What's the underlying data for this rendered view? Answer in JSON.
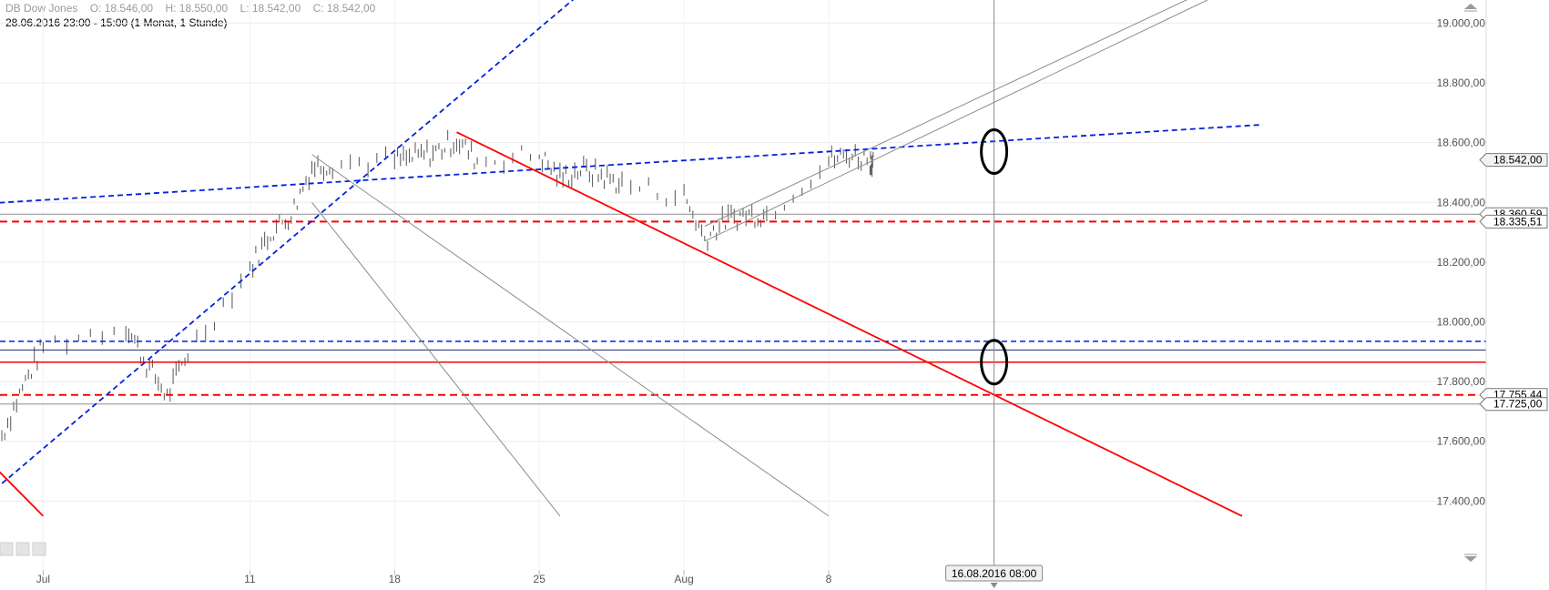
{
  "header": {
    "instrument": "DB Dow Jones",
    "open": "O: 18.546,00",
    "high": "H: 18.550,00",
    "low": "L: 18.542,00",
    "close": "C: 18.542,00",
    "range": "28.06.2016 23:00 - 15:00 (1 Monat, 1 Stunde)"
  },
  "crosshair_label": "16.08.2016 08:00",
  "colors": {
    "red": "#ff0000",
    "blue": "#0022dd",
    "grey": "#8c8c8c",
    "candle": "#555555"
  },
  "chart_data": {
    "type": "line",
    "title": "DB Dow Jones",
    "xlabel": "",
    "ylabel": "",
    "x_ticks": [
      "Jul",
      "11",
      "18",
      "25",
      "Aug",
      "8"
    ],
    "y_ticks": [
      "19.000,00",
      "18.800,00",
      "18.600,00",
      "18.400,00",
      "18.200,00",
      "18.000,00",
      "17.800,00",
      "17.600,00",
      "17.400,00"
    ],
    "ylim": [
      17350,
      19100
    ],
    "grid": true,
    "price_series": {
      "name": "",
      "dates": [
        "2016-06-29",
        "2016-06-30",
        "2016-07-01",
        "2016-07-05",
        "2016-07-06",
        "2016-07-07",
        "2016-07-08",
        "2016-07-11",
        "2016-07-12",
        "2016-07-13",
        "2016-07-14",
        "2016-07-15",
        "2016-07-18",
        "2016-07-19",
        "2016-07-20",
        "2016-07-21",
        "2016-07-22",
        "2016-07-25",
        "2016-07-26",
        "2016-07-27",
        "2016-07-28",
        "2016-07-29",
        "2016-08-01",
        "2016-08-02",
        "2016-08-03",
        "2016-08-04",
        "2016-08-05",
        "2016-08-08",
        "2016-08-09",
        "2016-08-10"
      ],
      "values": [
        17620,
        17780,
        17920,
        17990,
        17860,
        17750,
        17900,
        18180,
        18300,
        18360,
        18520,
        18530,
        18540,
        18550,
        18570,
        18610,
        18540,
        18560,
        18480,
        18510,
        18490,
        18460,
        18420,
        18280,
        18340,
        18360,
        18360,
        18540,
        18560,
        18542
      ]
    },
    "horizontal_levels": [
      {
        "value": 18360.59,
        "label": "18.360,59",
        "color": "#8c8c8c",
        "style": "solid"
      },
      {
        "value": 18335.51,
        "label": "18.335,51",
        "color": "#ff0000",
        "style": "dashed"
      },
      {
        "value": 18542.0,
        "label": "18.542,00",
        "color": "#8c8c8c",
        "style": "tag"
      },
      {
        "value": 17755.44,
        "label": "17.755,44",
        "color": "#ff0000",
        "style": "dashed"
      },
      {
        "value": 17725.0,
        "label": "17.725,00",
        "color": "#8c8c8c",
        "style": "solid"
      },
      {
        "value": 17935,
        "label": "",
        "color": "#0022dd",
        "style": "dashed"
      },
      {
        "value": 17906,
        "label": "",
        "color": "#1a2a6a",
        "style": "solid"
      },
      {
        "value": 17865,
        "label": "",
        "color": "#ff0000",
        "style": "solid"
      }
    ],
    "trendlines": [
      {
        "name": "",
        "color": "#0022dd",
        "style": "dashed",
        "from": [
          "2016-06-28",
          18395
        ],
        "to": [
          "2016-08-29",
          18660
        ]
      },
      {
        "name": "",
        "color": "#0022dd",
        "style": "dashed",
        "from": [
          "2016-06-28",
          17400
        ],
        "to": [
          "2016-07-27",
          19100
        ]
      },
      {
        "name": "",
        "color": "#ff0000",
        "style": "solid",
        "from": [
          "2016-07-21",
          18635
        ],
        "to": [
          "2016-08-28",
          17350
        ]
      },
      {
        "name": "",
        "color": "#ff0000",
        "style": "solid",
        "from": [
          "2016-06-28",
          17560
        ],
        "to": [
          "2016-07-01",
          17350
        ]
      },
      {
        "name": "",
        "color": "#8c8c8c",
        "style": "solid",
        "from": [
          "2016-07-14",
          18400
        ],
        "to": [
          "2016-07-26",
          17350
        ]
      },
      {
        "name": "",
        "color": "#8c8c8c",
        "style": "solid",
        "from": [
          "2016-07-14",
          18560
        ],
        "to": [
          "2016-08-08",
          17350
        ]
      },
      {
        "name": "",
        "color": "#8c8c8c",
        "style": "solid",
        "from": [
          "2016-08-02",
          18320
        ],
        "to": [
          "2016-08-26",
          19100
        ]
      },
      {
        "name": "",
        "color": "#8c8c8c",
        "style": "solid",
        "from": [
          "2016-08-02",
          18270
        ],
        "to": [
          "2016-08-27",
          19100
        ]
      }
    ],
    "crosshair_date": "2016-08-16",
    "ellipse_markers": [
      {
        "date": "2016-08-16",
        "value": 18570
      },
      {
        "date": "2016-08-16",
        "value": 17865
      }
    ]
  }
}
